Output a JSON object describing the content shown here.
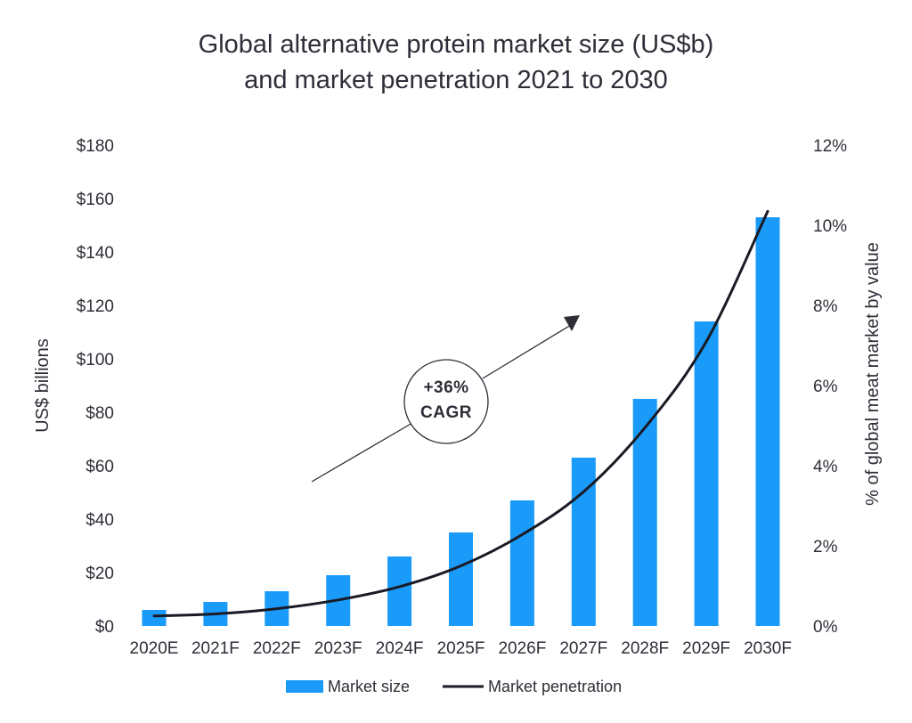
{
  "chart_data": {
    "type": "bar",
    "title_line1": "Global alternative protein market size (US$b)",
    "title_line2": "and market penetration 2021 to 2030",
    "categories": [
      "2020E",
      "2021F",
      "2022F",
      "2023F",
      "2024F",
      "2025F",
      "2026F",
      "2027F",
      "2028F",
      "2029F",
      "2030F"
    ],
    "series": [
      {
        "name": "Market size",
        "axis": "left",
        "kind": "bar",
        "color": "#1a9af9",
        "values": [
          6,
          9,
          13,
          19,
          26,
          35,
          47,
          63,
          85,
          114,
          153
        ]
      },
      {
        "name": "Market penetration",
        "axis": "right",
        "kind": "line",
        "color": "#1a1a24",
        "values": [
          0.25,
          0.3,
          0.43,
          0.65,
          0.98,
          1.5,
          2.28,
          3.35,
          4.95,
          7.1,
          10.35
        ]
      }
    ],
    "ylabel": "US$ billions",
    "ylim": [
      0,
      180
    ],
    "yticks": [
      "$0",
      "$20",
      "$40",
      "$60",
      "$80",
      "$100",
      "$120",
      "$140",
      "$160",
      "$180"
    ],
    "y2label": "% of global meat market by value",
    "y2lim": [
      0,
      12
    ],
    "y2ticks": [
      "0%",
      "2%",
      "4%",
      "6%",
      "8%",
      "10%",
      "12%"
    ],
    "annotation": {
      "line1": "+36%",
      "line2": "CAGR"
    },
    "legend_position": "bottom",
    "grid": false
  }
}
